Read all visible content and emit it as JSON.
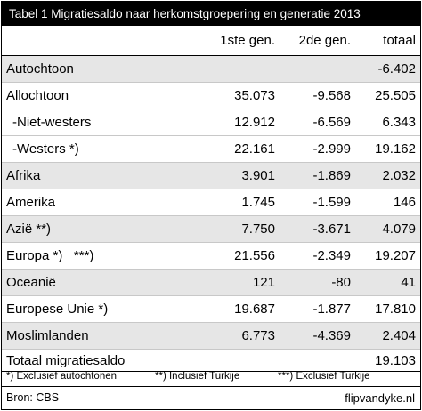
{
  "title": "Tabel 1 Migratiesaldo naar herkomstgroepering en generatie 2013",
  "columns": [
    "1ste gen.",
    "2de gen.",
    "totaal"
  ],
  "rows": [
    {
      "label": "Autochtoon",
      "gen1": "",
      "gen2": "",
      "total": "-6.402"
    },
    {
      "label": "Allochtoon",
      "gen1": "35.073",
      "gen2": "-9.568",
      "total": "25.505"
    },
    {
      "label": "-Niet-westers",
      "gen1": "12.912",
      "gen2": "-6.569",
      "total": "6.343"
    },
    {
      "label": "-Westers *)",
      "gen1": "22.161",
      "gen2": "-2.999",
      "total": "19.162"
    },
    {
      "label": "Afrika",
      "gen1": "3.901",
      "gen2": "-1.869",
      "total": "2.032"
    },
    {
      "label": "Amerika",
      "gen1": "1.745",
      "gen2": "-1.599",
      "total": "146"
    },
    {
      "label": "Azië **)",
      "gen1": "7.750",
      "gen2": "-3.671",
      "total": "4.079"
    },
    {
      "label": "Europa *)   ***)",
      "gen1": "21.556",
      "gen2": "-2.349",
      "total": "19.207"
    },
    {
      "label": "Oceanië",
      "gen1": "121",
      "gen2": "-80",
      "total": "41"
    },
    {
      "label": "Europese Unie *)",
      "gen1": "19.687",
      "gen2": "-1.877",
      "total": "17.810"
    },
    {
      "label": "Moslimlanden",
      "gen1": "6.773",
      "gen2": "-4.369",
      "total": "2.404"
    }
  ],
  "total_row": {
    "label": "Totaal migratiesaldo",
    "total": "19.103"
  },
  "footnotes": [
    "*) Exclusief autochtonen",
    "**) Inclusief Turkije",
    "***) Exclusief Turkije"
  ],
  "source": "Bron: CBS",
  "site": "flipvandyke.nl",
  "colors": {
    "title_bg": "#000000",
    "title_fg": "#ffffff",
    "shade": "#e6e6e6"
  }
}
